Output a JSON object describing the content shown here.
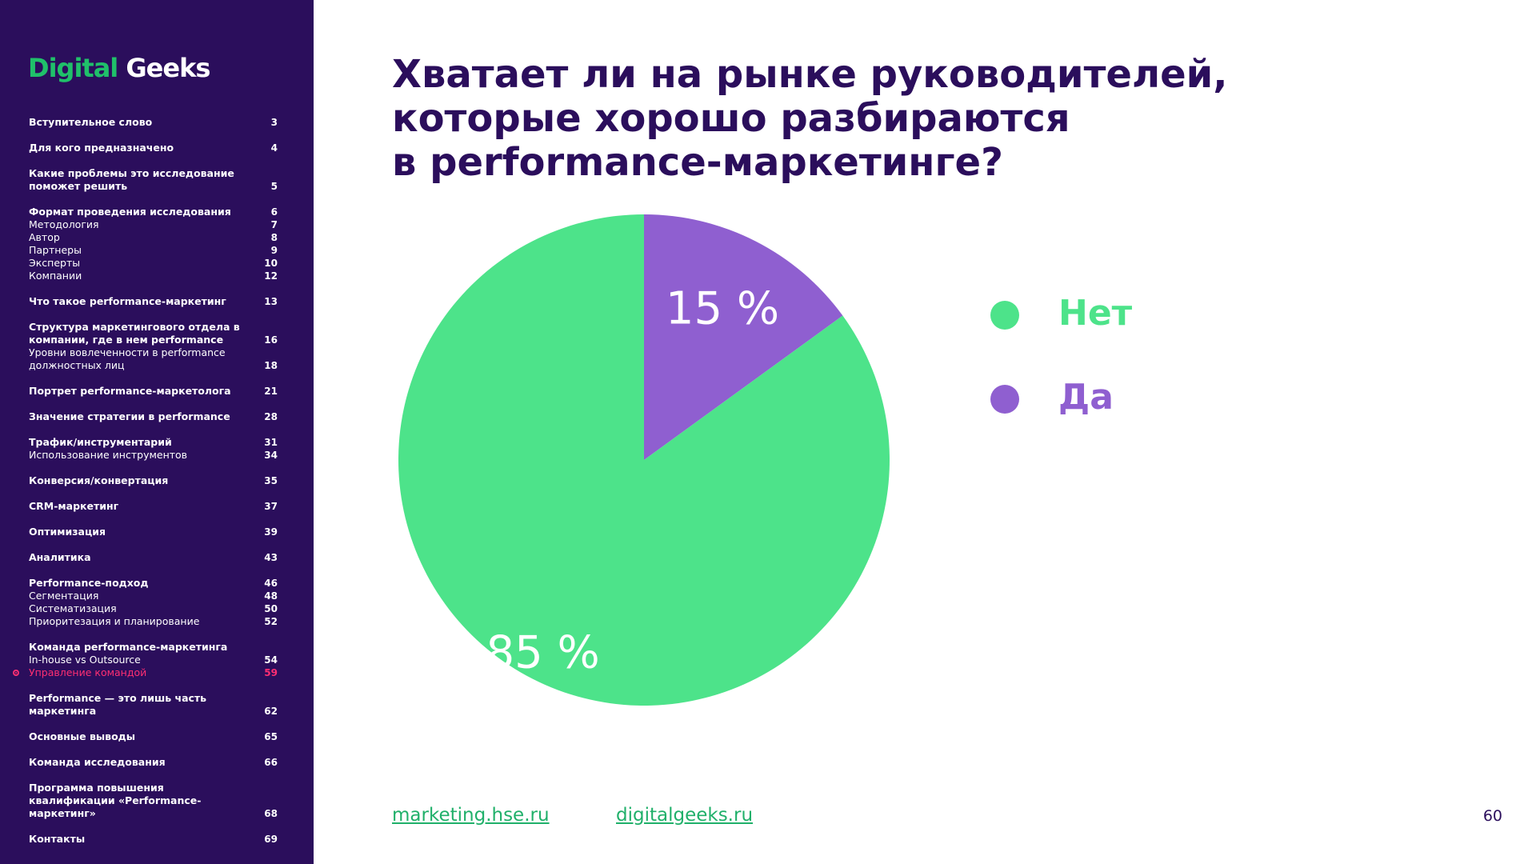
{
  "logo": {
    "part1": "Digital",
    "part2": "Geeks"
  },
  "toc": [
    {
      "text": "Вступительное слово",
      "page": "3",
      "bold": true,
      "gap": false
    },
    {
      "text": "Для кого предназначено",
      "page": "4",
      "bold": true,
      "gap": true
    },
    {
      "text": "Какие проблемы это исследование поможет решить",
      "page": "5",
      "bold": true,
      "gap": true
    },
    {
      "text": "Формат проведения исследования",
      "page": "6",
      "bold": true,
      "gap": true
    },
    {
      "text": "Методология",
      "page": "7",
      "bold": false,
      "gap": false
    },
    {
      "text": "Автор",
      "page": "8",
      "bold": false,
      "gap": false
    },
    {
      "text": "Партнеры",
      "page": "9",
      "bold": false,
      "gap": false
    },
    {
      "text": "Эксперты",
      "page": "10",
      "bold": false,
      "gap": false
    },
    {
      "text": "Компании",
      "page": "12",
      "bold": false,
      "gap": false
    },
    {
      "text": "Что такое performance-маркетинг",
      "page": "13",
      "bold": true,
      "gap": true
    },
    {
      "text": "Структура маркетингового отдела в компании, где в нем performance",
      "page": "16",
      "bold": true,
      "gap": true
    },
    {
      "text": "Уровни вовлеченности в performance должностных лиц",
      "page": "18",
      "bold": false,
      "gap": false
    },
    {
      "text": "Портрет performance-маркетолога",
      "page": "21",
      "bold": true,
      "gap": true
    },
    {
      "text": "Значение стратегии в performance",
      "page": "28",
      "bold": true,
      "gap": true
    },
    {
      "text": "Трафик/инструментарий",
      "page": "31",
      "bold": true,
      "gap": true
    },
    {
      "text": "Использование инструментов",
      "page": "34",
      "bold": false,
      "gap": false
    },
    {
      "text": "Конверсия/конвертация",
      "page": "35",
      "bold": true,
      "gap": true
    },
    {
      "text": "CRM-маркетинг",
      "page": "37",
      "bold": true,
      "gap": true
    },
    {
      "text": "Оптимизация",
      "page": "39",
      "bold": true,
      "gap": true
    },
    {
      "text": "Аналитика",
      "page": "43",
      "bold": true,
      "gap": true
    },
    {
      "text": "Performance-подход",
      "page": "46",
      "bold": true,
      "gap": true
    },
    {
      "text": "Сегментация",
      "page": "48",
      "bold": false,
      "gap": false
    },
    {
      "text": "Систематизация",
      "page": "50",
      "bold": false,
      "gap": false
    },
    {
      "text": "Приоритезация и планирование",
      "page": "52",
      "bold": false,
      "gap": false
    },
    {
      "text": "Команда performance-маркетинга",
      "page": "",
      "bold": true,
      "gap": true
    },
    {
      "text": "In-house vs Outsource",
      "page": "54",
      "bold": false,
      "gap": false
    },
    {
      "text": "Управление командой",
      "page": "59",
      "bold": false,
      "gap": false,
      "active": true
    },
    {
      "text": "Performance — это лишь часть маркетинга",
      "page": "62",
      "bold": true,
      "gap": true
    },
    {
      "text": "Основные выводы",
      "page": "65",
      "bold": true,
      "gap": true
    },
    {
      "text": "Команда исследования",
      "page": "66",
      "bold": true,
      "gap": true
    },
    {
      "text": "Программа повышения квалификации «Performance-маркетинг»",
      "page": "68",
      "bold": true,
      "gap": true
    },
    {
      "text": "Контакты",
      "page": "69",
      "bold": true,
      "gap": true
    }
  ],
  "title_lines": [
    "Хватает ли на рынке руководителей,",
    "которые хорошо разбираются",
    "в performance-маркетинге?"
  ],
  "colors": {
    "sidebar": "#2b0e5c",
    "green": "#4de38a",
    "purple": "#8f5fd0",
    "active": "#ff2e72",
    "link": "#20b06a"
  },
  "chart_data": {
    "type": "pie",
    "slices": [
      {
        "label": "Нет",
        "value": 85,
        "display": "85 %",
        "color": "#4de38a"
      },
      {
        "label": "Да",
        "value": 15,
        "display": "15 %",
        "color": "#8f5fd0"
      }
    ],
    "legend_position": "right"
  },
  "footer": {
    "link1": "marketing.hse.ru",
    "link2": "digitalgeeks.ru",
    "page_number": "60"
  }
}
